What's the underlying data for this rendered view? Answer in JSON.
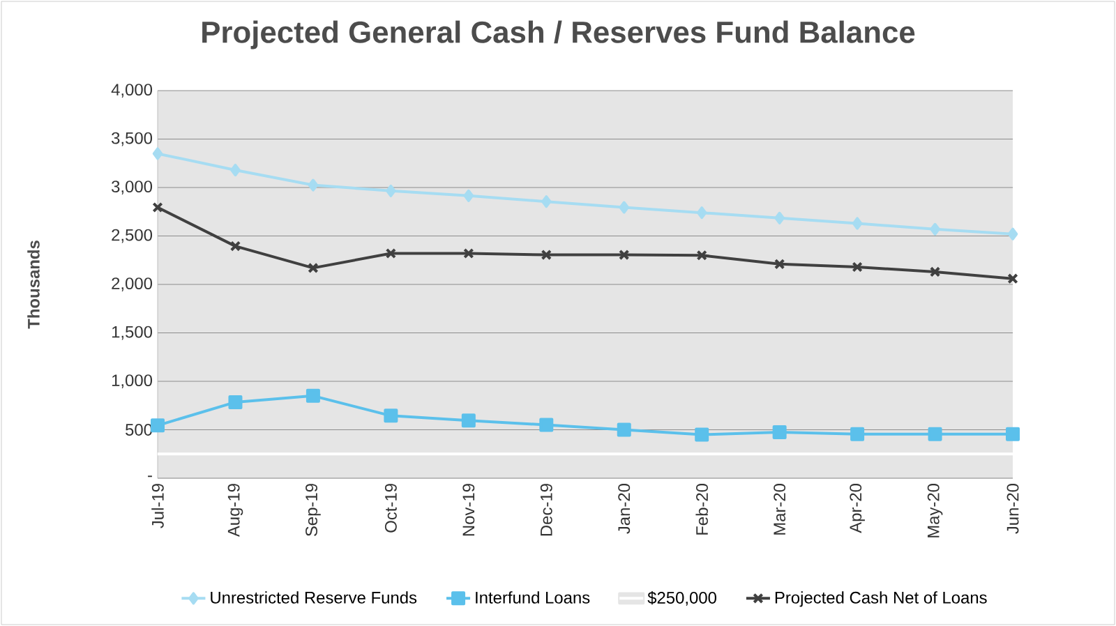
{
  "chart_data": {
    "type": "line",
    "title": "Projected General Cash / Reserves Fund Balance",
    "ylabel": "Thousands",
    "categories": [
      "Jul-19",
      "Aug-19",
      "Sep-19",
      "Oct-19",
      "Nov-19",
      "Dec-19",
      "Jan-20",
      "Feb-20",
      "Mar-20",
      "Apr-20",
      "May-20",
      "Jun-20"
    ],
    "series": [
      {
        "name": "Unrestricted Reserve Funds",
        "color": "#a6dcf2",
        "marker": "diamond",
        "values": [
          3350,
          3180,
          3025,
          2965,
          2915,
          2855,
          2795,
          2740,
          2685,
          2630,
          2570,
          2520
        ]
      },
      {
        "name": "Interfund Loans",
        "color": "#5bc0eb",
        "marker": "square",
        "values": [
          545,
          785,
          850,
          645,
          595,
          550,
          500,
          450,
          475,
          455,
          455,
          455
        ]
      },
      {
        "name": "$250,000",
        "color": "#ffffff",
        "marker": "none",
        "values": [
          250,
          250,
          250,
          250,
          250,
          250,
          250,
          250,
          250,
          250,
          250,
          250
        ]
      },
      {
        "name": "Projected Cash Net of Loans",
        "color": "#404040",
        "marker": "cross",
        "values": [
          2795,
          2395,
          2170,
          2320,
          2320,
          2305,
          2305,
          2300,
          2210,
          2180,
          2130,
          2060
        ]
      }
    ],
    "ylim": [
      0,
      4000
    ],
    "yticks": [
      {
        "value": 0,
        "label": "-"
      },
      500,
      {
        "value": 1000,
        "label": "1,000"
      },
      {
        "value": 1500,
        "label": "1,500"
      },
      {
        "value": 2000,
        "label": "2,000"
      },
      {
        "value": 2500,
        "label": "2,500"
      },
      {
        "value": 3000,
        "label": "3,000"
      },
      {
        "value": 3500,
        "label": "3,500"
      },
      {
        "value": 4000,
        "label": "4,000"
      }
    ],
    "grid": "y",
    "legend": "bottom"
  }
}
